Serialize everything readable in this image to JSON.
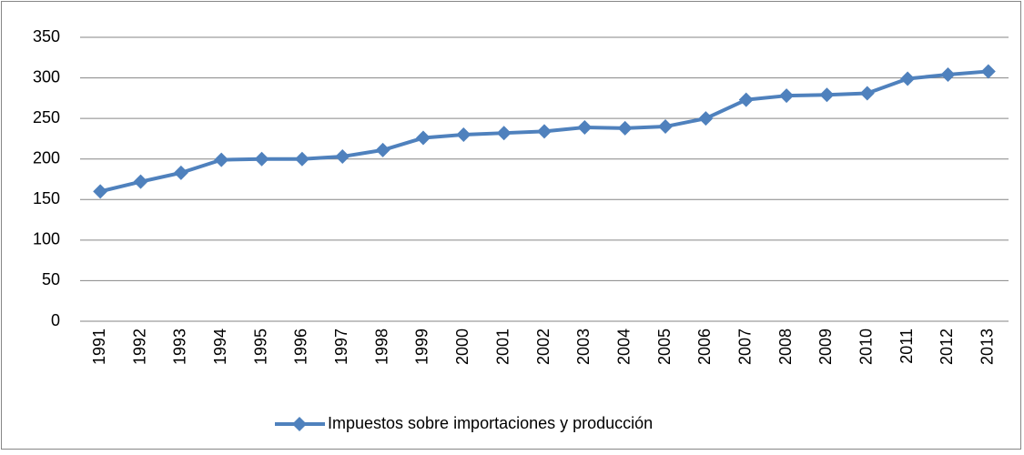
{
  "chart_data": {
    "type": "line",
    "categories": [
      "1991",
      "1992",
      "1993",
      "1994",
      "1995",
      "1996",
      "1997",
      "1998",
      "1999",
      "2000",
      "2001",
      "2002",
      "2003",
      "2004",
      "2005",
      "2006",
      "2007",
      "2008",
      "2009",
      "2010",
      "2011",
      "2012",
      "2013"
    ],
    "series": [
      {
        "name": "Impuestos sobre importaciones y producción",
        "color": "#4f81bd",
        "values": [
          160,
          172,
          183,
          199,
          200,
          200,
          203,
          211,
          226,
          230,
          232,
          234,
          239,
          238,
          240,
          250,
          273,
          278,
          279,
          281,
          299,
          304,
          308
        ]
      }
    ],
    "ylim": [
      0,
      350
    ],
    "yticks": [
      0,
      50,
      100,
      150,
      200,
      250,
      300,
      350
    ],
    "grid": true,
    "legend": "bottom"
  }
}
